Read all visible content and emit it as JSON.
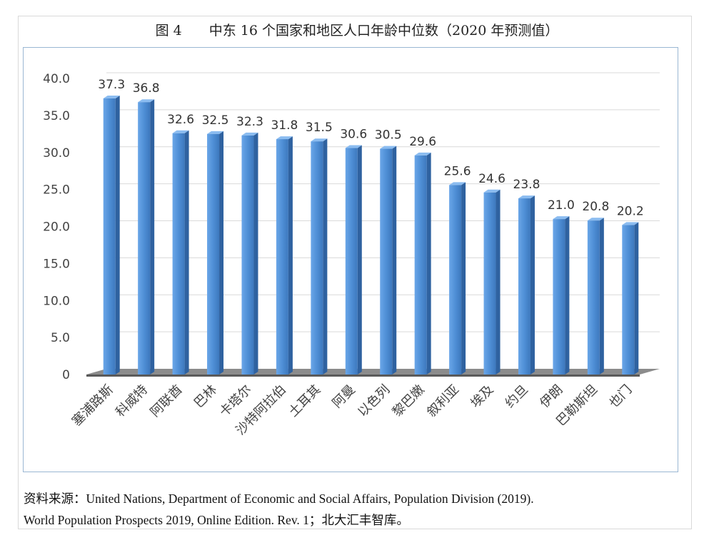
{
  "chart_data": {
    "type": "bar",
    "title": "图 4　　中东 16 个国家和地区人口年龄中位数（2020 年预测值）",
    "categories": [
      "塞浦路斯",
      "科威特",
      "阿联酋",
      "巴林",
      "卡塔尔",
      "沙特阿拉伯",
      "土耳其",
      "阿曼",
      "以色列",
      "黎巴嫩",
      "叙利亚",
      "埃及",
      "约旦",
      "伊朗",
      "巴勒斯坦",
      "也门"
    ],
    "values": [
      37.3,
      36.8,
      32.6,
      32.5,
      32.3,
      31.8,
      31.5,
      30.6,
      30.5,
      29.6,
      25.6,
      24.6,
      23.8,
      21.0,
      20.8,
      20.2
    ],
    "value_labels": [
      "37.3",
      "36.8",
      "32.6",
      "32.5",
      "32.3",
      "31.8",
      "31.5",
      "30.6",
      "30.5",
      "29.6",
      "25.6",
      "24.6",
      "23.8",
      "21.0",
      "20.8",
      "20.2"
    ],
    "yticks": [
      "0",
      "5.0",
      "10.0",
      "15.0",
      "20.0",
      "25.0",
      "30.0",
      "35.0",
      "40.0"
    ],
    "ylim": [
      0,
      40
    ],
    "grid": true,
    "legend": "none",
    "bar_color": "#4f8fd6"
  },
  "source": {
    "line1": "资料来源：United Nations, Department of Economic and Social Affairs, Population Division (2019).",
    "line2": "World Population Prospects 2019, Online Edition. Rev. 1；北大汇丰智库。"
  }
}
